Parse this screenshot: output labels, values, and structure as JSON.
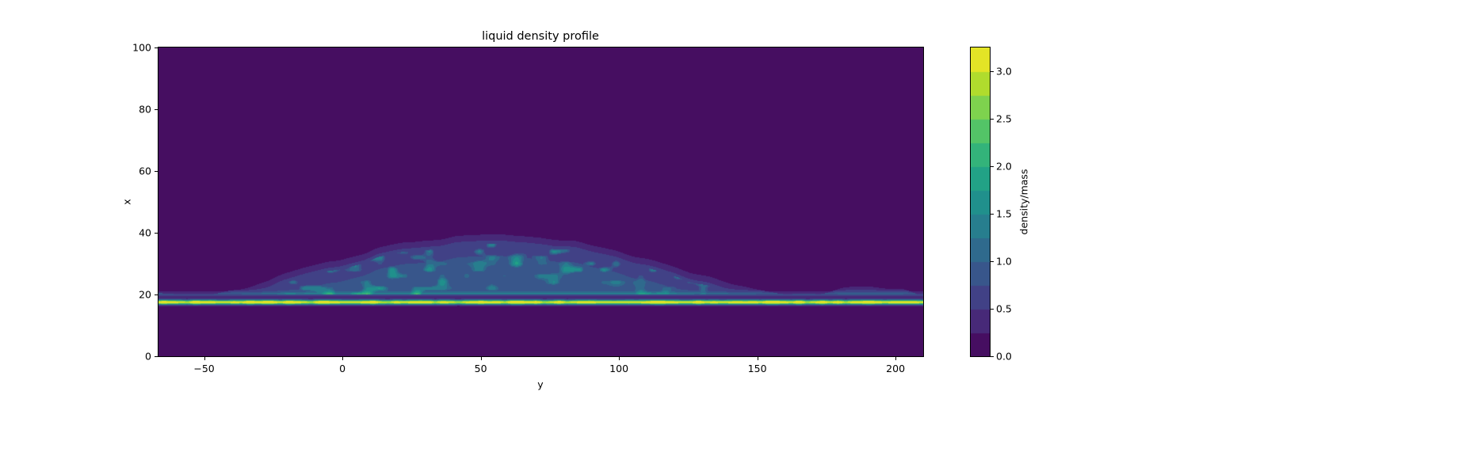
{
  "figure": {
    "title": "liquid density profile",
    "xlabel": "y",
    "ylabel": "x",
    "colorbar_label": "density/mass"
  },
  "chart_data": {
    "type": "heatmap",
    "title": "liquid density profile",
    "xlabel": "y",
    "ylabel": "x",
    "x_range": [
      -66.5,
      210
    ],
    "y_range": [
      0,
      100
    ],
    "x_ticks": [
      -50,
      0,
      50,
      100,
      150,
      200
    ],
    "x_tick_labels": [
      "−50",
      "0",
      "50",
      "100",
      "150",
      "200"
    ],
    "y_ticks": [
      0,
      20,
      40,
      60,
      80,
      100
    ],
    "y_tick_labels": [
      "0",
      "20",
      "40",
      "60",
      "80",
      "100"
    ],
    "colormap": "viridis",
    "vmin": 0,
    "vmax": 3.25,
    "level_step": 0.25,
    "grid": false,
    "colorbar": {
      "label": "density/mass",
      "ticks": [
        0.0,
        0.5,
        1.0,
        1.5,
        2.0,
        2.5,
        3.0
      ],
      "tick_labels": [
        "0.0",
        "0.5",
        "1.0",
        "1.5",
        "2.0",
        "2.5",
        "3.0"
      ]
    },
    "summary": "Dark purple (density ~0) vapor everywhere except a bright yellow-green liquid film line at x~17.5 spanning the full y range (peak density ~3.2), a faint full-width adsorbed band just above it at x~20, and a diffuse droplet cap (density ~0.5-1.5 with teal speckles) rising from x~20 to an apex of x~39 near y~55, fading out near y~-45 and y~160.",
    "features": {
      "background": 0.05,
      "film": {
        "x_center": 17.5,
        "sigma": 0.75,
        "peak": 3.3,
        "mod_amp": 0.35
      },
      "adsorbed_band": {
        "x_center": 19.9,
        "sigma": 1.0,
        "peak": 0.55
      },
      "droplet_cap": {
        "y_center": 55,
        "y_half_width": 105,
        "base_x": 20,
        "apex_rise": 19,
        "interior": 0.35,
        "edge_boost": 0.45,
        "speckle_max": 1.0
      },
      "right_bump": {
        "y_center": 190,
        "y_half_width": 18,
        "rise": 2.5
      }
    }
  }
}
